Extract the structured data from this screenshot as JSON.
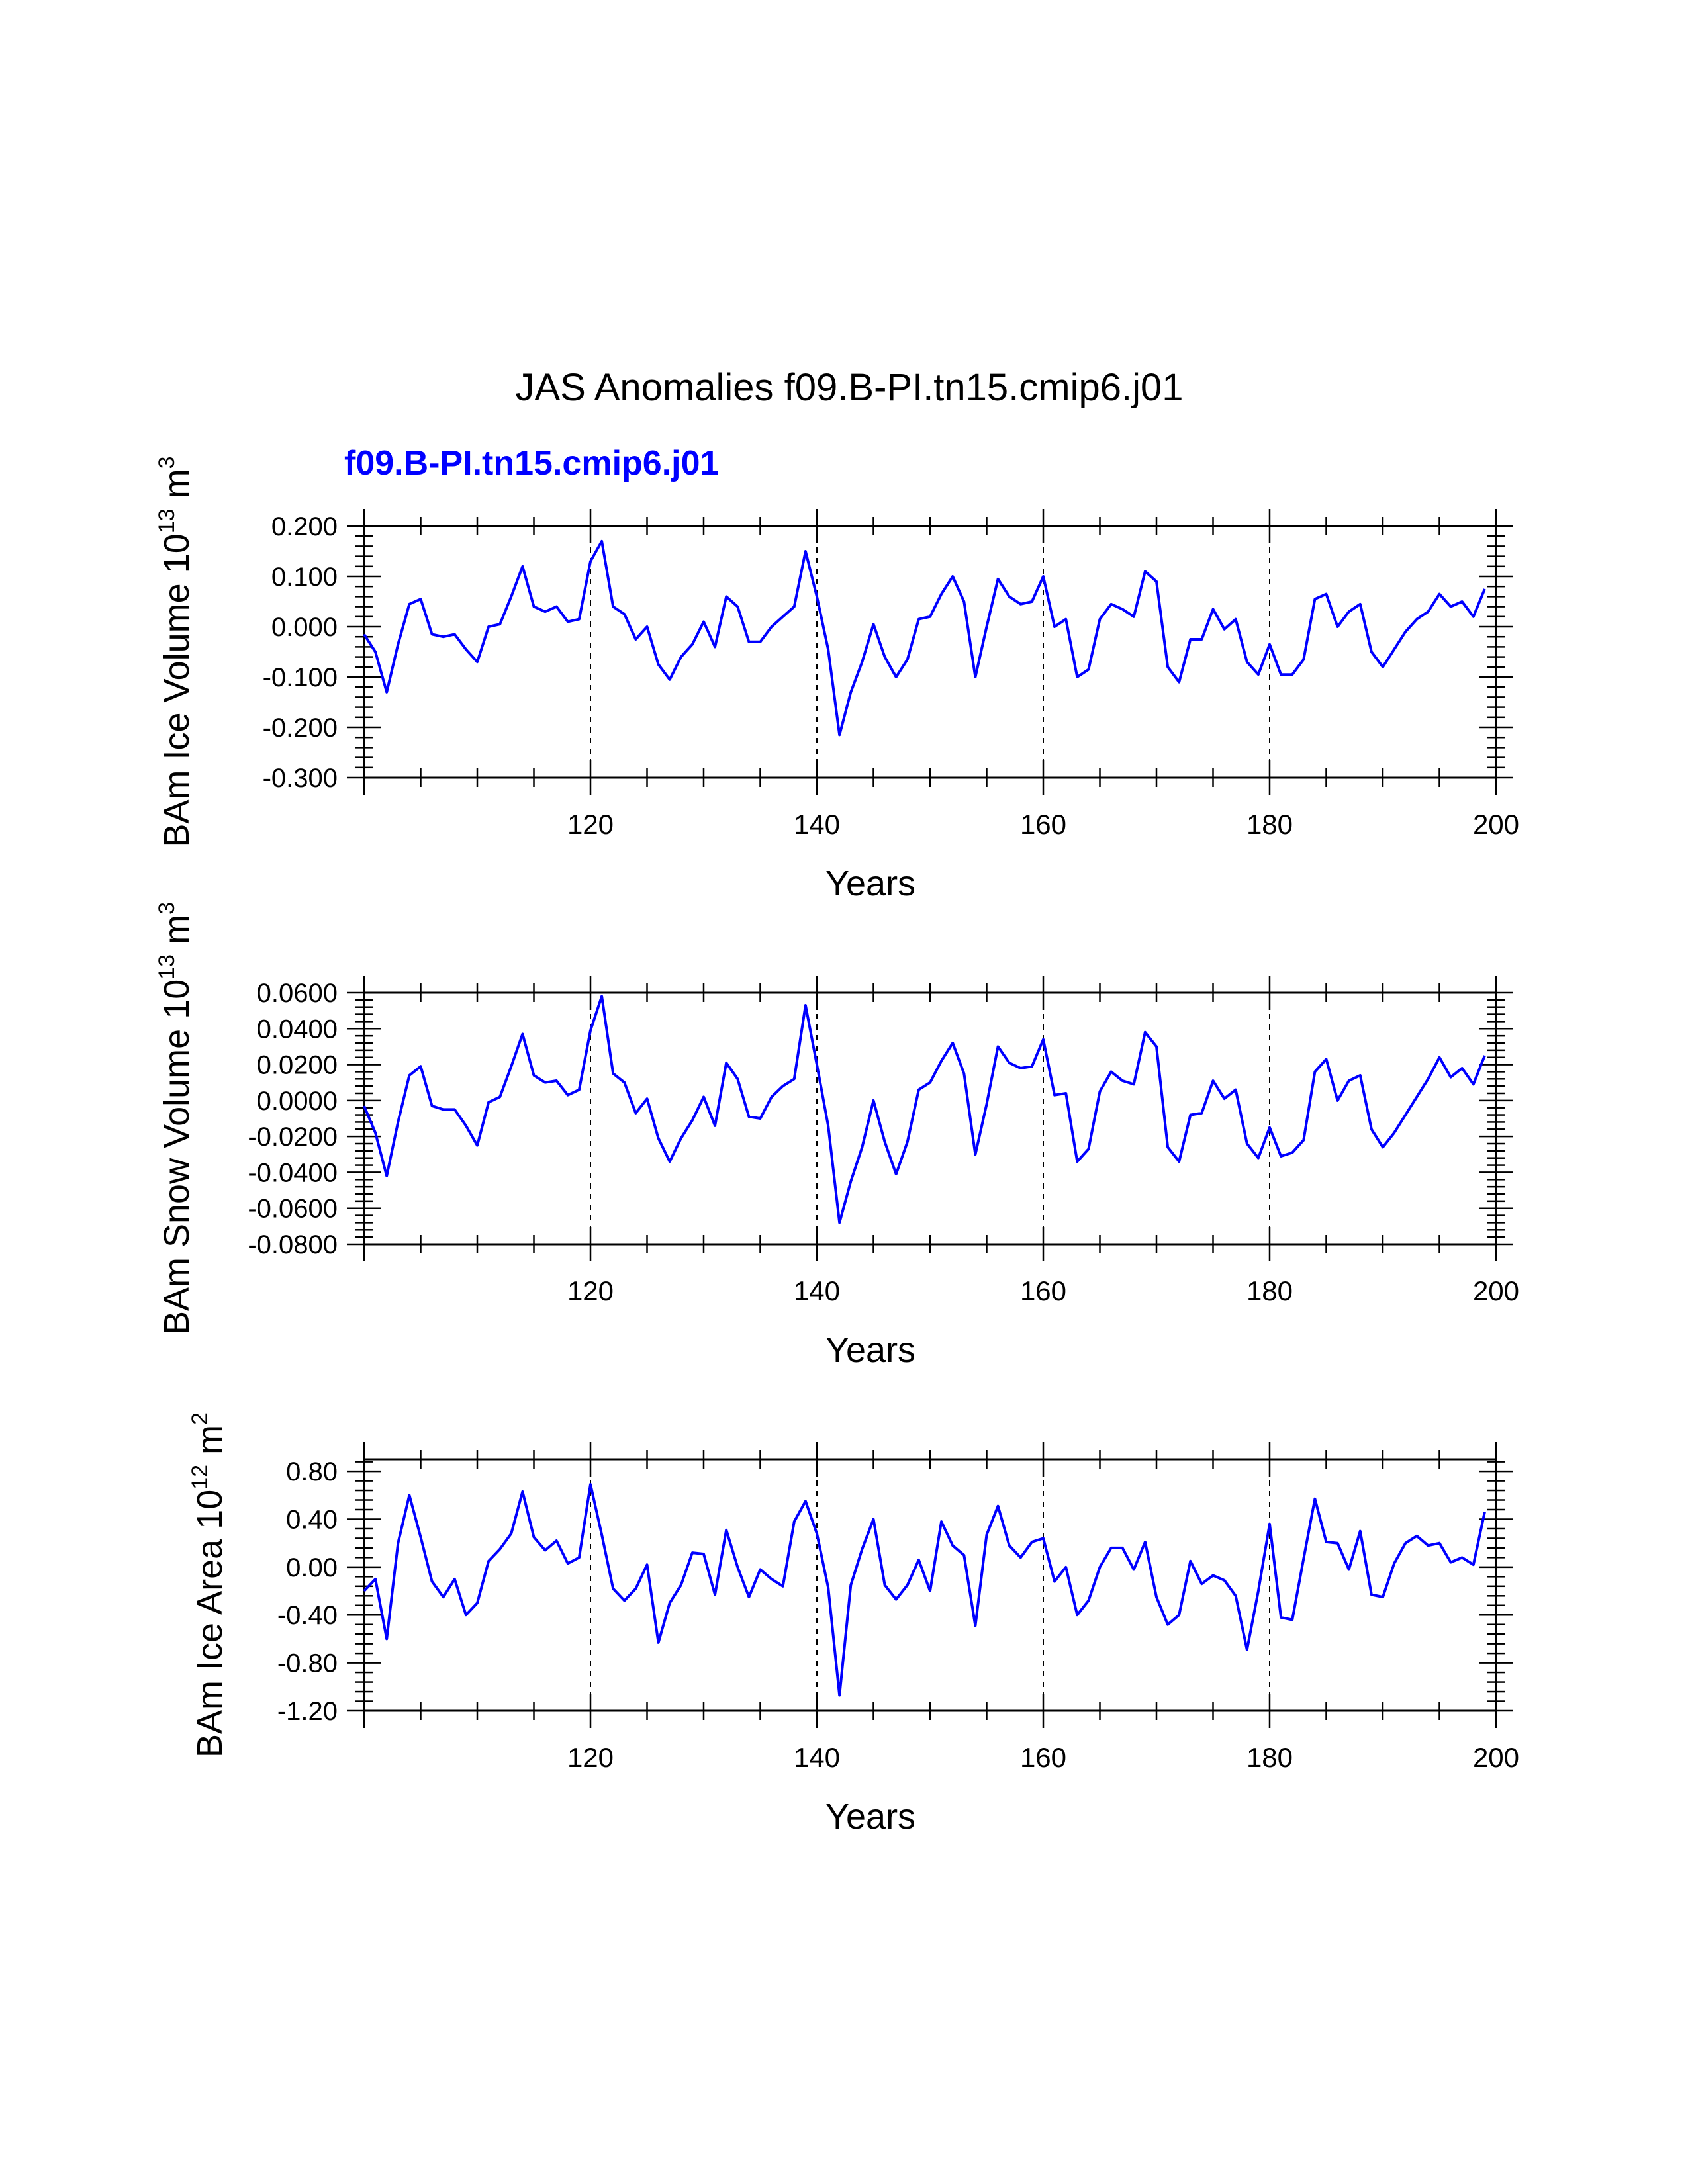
{
  "page": {
    "title": "JAS Anomalies f09.B-PI.tn15.cmip6.j01",
    "subtitle": "f09.B-PI.tn15.cmip6.j01",
    "subtitle_color": "#0000ff",
    "line_color": "#0000ff"
  },
  "chart_data": [
    {
      "type": "line",
      "ylabel": "BAm Ice Volume 10",
      "ylabel_exponent": "13",
      "ylabel_unit": "m",
      "ylabel_unit_exponent": "3",
      "xlabel": "Years",
      "xlim": [
        100,
        200
      ],
      "ylim": [
        -0.3,
        0.2
      ],
      "xticks": [
        120,
        140,
        160,
        180,
        200
      ],
      "xtick_labels": [
        "120",
        "140",
        "160",
        "180",
        "200"
      ],
      "yticks": [
        0.2,
        0.1,
        0.0,
        -0.1,
        -0.2,
        -0.3
      ],
      "ytick_labels": [
        "0.200",
        "0.100",
        "0.000",
        "-0.100",
        "-0.200",
        "-0.300"
      ],
      "vlines": [
        120,
        140,
        160,
        180
      ],
      "x_start": 100,
      "values": [
        -0.015,
        -0.05,
        -0.13,
        -0.035,
        0.045,
        0.055,
        -0.015,
        -0.02,
        -0.015,
        -0.045,
        -0.07,
        0.0,
        0.005,
        0.06,
        0.12,
        0.04,
        0.03,
        0.04,
        0.01,
        0.015,
        0.13,
        0.17,
        0.04,
        0.025,
        -0.025,
        0.0,
        -0.075,
        -0.105,
        -0.06,
        -0.035,
        0.01,
        -0.04,
        0.06,
        0.04,
        -0.03,
        -0.03,
        0.0,
        0.02,
        0.04,
        0.15,
        0.06,
        -0.045,
        -0.215,
        -0.13,
        -0.07,
        0.005,
        -0.06,
        -0.1,
        -0.065,
        0.015,
        0.02,
        0.065,
        0.1,
        0.05,
        -0.1,
        0.0,
        0.095,
        0.06,
        0.045,
        0.05,
        0.1,
        0.0,
        0.015,
        -0.1,
        -0.085,
        0.015,
        0.045,
        0.035,
        0.02,
        0.11,
        0.09,
        -0.08,
        -0.11,
        -0.025,
        -0.025,
        0.035,
        -0.005,
        0.015,
        -0.07,
        -0.095,
        -0.035,
        -0.095,
        -0.095,
        -0.065,
        0.055,
        0.065,
        0.0,
        0.03,
        0.045,
        -0.05,
        -0.08,
        -0.045,
        -0.01,
        0.015,
        0.03,
        0.065,
        0.04,
        0.05,
        0.02,
        0.075
      ]
    },
    {
      "type": "line",
      "ylabel": "BAm Snow Volume 10",
      "ylabel_exponent": "13",
      "ylabel_unit": "m",
      "ylabel_unit_exponent": "3",
      "xlabel": "Years",
      "xlim": [
        100,
        200
      ],
      "ylim": [
        -0.08,
        0.06
      ],
      "xticks": [
        120,
        140,
        160,
        180,
        200
      ],
      "xtick_labels": [
        "120",
        "140",
        "160",
        "180",
        "200"
      ],
      "yticks": [
        0.06,
        0.04,
        0.02,
        0.0,
        -0.02,
        -0.04,
        -0.06,
        -0.08
      ],
      "ytick_labels": [
        "0.0600",
        "0.0400",
        "0.0200",
        "0.0000",
        "-0.0200",
        "-0.0400",
        "-0.0600",
        "-0.0800"
      ],
      "vlines": [
        120,
        140,
        160,
        180
      ],
      "x_start": 100,
      "values": [
        -0.003,
        -0.018,
        -0.042,
        -0.012,
        0.014,
        0.019,
        -0.003,
        -0.005,
        -0.005,
        -0.014,
        -0.025,
        -0.001,
        0.002,
        0.019,
        0.037,
        0.014,
        0.01,
        0.011,
        0.003,
        0.006,
        0.039,
        0.058,
        0.015,
        0.01,
        -0.007,
        0.001,
        -0.021,
        -0.034,
        -0.021,
        -0.011,
        0.002,
        -0.014,
        0.021,
        0.012,
        -0.009,
        -0.01,
        0.002,
        0.008,
        0.012,
        0.053,
        0.02,
        -0.014,
        -0.068,
        -0.045,
        -0.026,
        0.0,
        -0.023,
        -0.041,
        -0.023,
        0.006,
        0.01,
        0.022,
        0.032,
        0.015,
        -0.03,
        -0.002,
        0.03,
        0.021,
        0.018,
        0.019,
        0.034,
        0.003,
        0.004,
        -0.034,
        -0.027,
        0.005,
        0.016,
        0.011,
        0.009,
        0.038,
        0.03,
        -0.026,
        -0.034,
        -0.008,
        -0.007,
        0.011,
        0.001,
        0.006,
        -0.024,
        -0.032,
        -0.015,
        -0.031,
        -0.029,
        -0.022,
        0.016,
        0.023,
        0.0,
        0.011,
        0.014,
        -0.016,
        -0.026,
        -0.018,
        -0.008,
        0.002,
        0.012,
        0.024,
        0.013,
        0.018,
        0.009,
        0.025
      ]
    },
    {
      "type": "line",
      "ylabel": "BAm Ice Area 10",
      "ylabel_exponent": "12",
      "ylabel_unit": "m",
      "ylabel_unit_exponent": "2",
      "xlabel": "Years",
      "xlim": [
        100,
        200
      ],
      "ylim": [
        -1.2,
        0.9
      ],
      "xticks": [
        120,
        140,
        160,
        180,
        200
      ],
      "xtick_labels": [
        "120",
        "140",
        "160",
        "180",
        "200"
      ],
      "yticks": [
        0.8,
        0.4,
        0.0,
        -0.4,
        -0.8,
        -1.2
      ],
      "ytick_labels": [
        "0.80",
        "0.40",
        "0.00",
        "-0.40",
        "-0.80",
        "-1.20"
      ],
      "vlines": [
        120,
        140,
        160,
        180
      ],
      "x_start": 100,
      "values": [
        -0.2,
        -0.1,
        -0.6,
        0.2,
        0.6,
        0.25,
        -0.12,
        -0.25,
        -0.1,
        -0.4,
        -0.3,
        0.05,
        0.15,
        0.28,
        0.63,
        0.25,
        0.14,
        0.22,
        0.03,
        0.08,
        0.69,
        0.27,
        -0.18,
        -0.28,
        -0.18,
        0.02,
        -0.63,
        -0.3,
        -0.15,
        0.12,
        0.11,
        -0.23,
        0.31,
        0.0,
        -0.25,
        -0.02,
        -0.1,
        -0.16,
        0.38,
        0.55,
        0.28,
        -0.17,
        -1.07,
        -0.15,
        0.15,
        0.4,
        -0.15,
        -0.27,
        -0.15,
        0.06,
        -0.2,
        0.38,
        0.18,
        0.1,
        -0.49,
        0.27,
        0.51,
        0.18,
        0.08,
        0.21,
        0.24,
        -0.12,
        0.0,
        -0.4,
        -0.28,
        0.0,
        0.16,
        0.16,
        -0.02,
        0.21,
        -0.25,
        -0.48,
        -0.4,
        0.05,
        -0.14,
        -0.07,
        -0.11,
        -0.24,
        -0.69,
        -0.2,
        0.36,
        -0.42,
        -0.44,
        0.07,
        0.57,
        0.21,
        0.2,
        -0.02,
        0.3,
        -0.23,
        -0.25,
        0.03,
        0.2,
        0.26,
        0.18,
        0.2,
        0.04,
        0.08,
        0.02,
        0.46
      ]
    }
  ]
}
